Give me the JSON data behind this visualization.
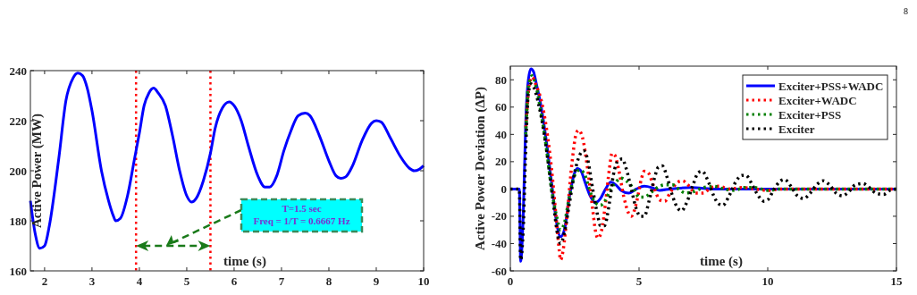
{
  "chart_data": [
    {
      "type": "line",
      "xlabel": "time (s)",
      "ylabel": "Active Power (MW)",
      "xlim": [
        1.7,
        10
      ],
      "ylim": [
        160,
        240
      ],
      "xticks": [
        2,
        3,
        4,
        5,
        6,
        7,
        8,
        9,
        10
      ],
      "yticks": [
        160,
        180,
        200,
        220,
        240
      ],
      "grid": false,
      "legend": false,
      "line_style": "solid",
      "marker": "none",
      "x": [
        1.7,
        1.8,
        1.9,
        2.0,
        2.1,
        2.3,
        2.45,
        2.6,
        2.7,
        2.8,
        2.9,
        3.0,
        3.2,
        3.35,
        3.45,
        3.5,
        3.6,
        3.75,
        3.9,
        4.0,
        4.1,
        4.2,
        4.3,
        4.4,
        4.55,
        4.7,
        4.85,
        5.0,
        5.1,
        5.2,
        5.35,
        5.5,
        5.6,
        5.75,
        5.9,
        6.0,
        6.15,
        6.3,
        6.5,
        6.65,
        6.75,
        6.9,
        7.05,
        7.2,
        7.35,
        7.5,
        7.6,
        7.8,
        8.0,
        8.15,
        8.25,
        8.35,
        8.5,
        8.7,
        8.9,
        9.0,
        9.1,
        9.3,
        9.5,
        9.7,
        9.8,
        9.9,
        10.0
      ],
      "series": [
        {
          "color": "#0000ff",
          "values": [
            188,
            175,
            169,
            170,
            178,
            205,
            228,
            237,
            239,
            238,
            233,
            224,
            200,
            188,
            182,
            180,
            181,
            190,
            205,
            215,
            226,
            231,
            233,
            231,
            226,
            214,
            200,
            190,
            187.5,
            189,
            196,
            207,
            217,
            225,
            227.5,
            226,
            220,
            210,
            198,
            193.5,
            193.5,
            198,
            208,
            216,
            222,
            223,
            222,
            214,
            204,
            198,
            197,
            197.5,
            202,
            212,
            219,
            220,
            219.5,
            213,
            206,
            201,
            200,
            200.5,
            202
          ]
        }
      ],
      "ref_lines": [
        {
          "axis": "x",
          "value": 3.93,
          "color": "#ff0000",
          "line_style": "dotted"
        },
        {
          "axis": "x",
          "value": 5.5,
          "color": "#ff0000",
          "line_style": "dotted"
        }
      ],
      "annotations": [
        "T=1.5 sec",
        "Freq = 1/T = 0.6667 Hz"
      ]
    },
    {
      "type": "line",
      "xlabel": "time (s)",
      "ylabel": "Active Power Deviation (ΔP)",
      "xlim": [
        0,
        15
      ],
      "ylim": [
        -60,
        90
      ],
      "xticks": [
        0,
        5,
        10,
        15
      ],
      "yticks": [
        -60,
        -40,
        -20,
        0,
        20,
        40,
        60,
        80
      ],
      "grid": false,
      "legend": "top right",
      "marker": "none",
      "annotations": [
        "8"
      ],
      "series": [
        {
          "name": "Exciter+PSS+WADC",
          "color": "#0000ff",
          "line_style": "solid",
          "x": [
            0,
            0.35,
            0.4,
            0.5,
            0.6,
            0.7,
            0.8,
            0.9,
            1.0,
            1.2,
            1.4,
            1.6,
            1.8,
            1.95,
            2.1,
            2.3,
            2.5,
            2.6,
            2.75,
            2.9,
            3.1,
            3.3,
            3.5,
            3.7,
            3.9,
            4.1,
            4.3,
            4.6,
            4.9,
            5.2,
            5.5,
            5.8,
            6.2,
            7,
            8,
            10,
            15
          ],
          "values": [
            0,
            0,
            -53,
            -20,
            50,
            80,
            88,
            86,
            78,
            60,
            35,
            5,
            -25,
            -35,
            -30,
            -5,
            12,
            15,
            13,
            5,
            -5,
            -10,
            -7,
            0,
            5,
            3,
            -1,
            -3,
            0,
            2,
            1,
            -1,
            0,
            1,
            0,
            0,
            0
          ]
        },
        {
          "name": "Exciter+WADC",
          "color": "#ff0000",
          "line_style": "dotted",
          "x": [
            0.6,
            0.75,
            0.85,
            1.0,
            1.2,
            1.4,
            1.6,
            1.8,
            1.9,
            1.95,
            2.05,
            2.2,
            2.4,
            2.55,
            2.65,
            2.8,
            3.0,
            3.2,
            3.3,
            3.4,
            3.55,
            3.7,
            3.85,
            3.95,
            4.05,
            4.2,
            4.4,
            4.6,
            4.7,
            4.9,
            5.1,
            5.2,
            5.35,
            5.6,
            5.8,
            6.0,
            6.2,
            6.5,
            6.7,
            6.9,
            7.2,
            7.5,
            7.8,
            8.1,
            8.5,
            9,
            9.5,
            10,
            10.5,
            11,
            15
          ],
          "values": [
            45,
            78,
            82,
            76,
            65,
            45,
            15,
            -25,
            -45,
            -52,
            -45,
            -20,
            20,
            40,
            43,
            38,
            15,
            -15,
            -30,
            -36,
            -30,
            -10,
            15,
            26,
            25,
            15,
            -5,
            -18,
            -20,
            -10,
            8,
            13,
            12,
            0,
            -8,
            -9,
            -3,
            5,
            6,
            3,
            -3,
            -3,
            1,
            2,
            0,
            1,
            0,
            -1,
            0,
            0,
            0
          ]
        },
        {
          "name": "Exciter+PSS",
          "color": "#008000",
          "line_style": "dotted",
          "x": [
            0.6,
            0.7,
            0.85,
            1.0,
            1.2,
            1.4,
            1.6,
            1.8,
            1.95,
            2.1,
            2.3,
            2.5,
            2.7,
            2.9,
            3.1,
            3.3,
            3.5,
            3.7,
            3.9,
            4.1,
            4.3,
            4.5,
            4.8,
            5.0,
            5.2,
            5.5,
            5.8,
            6.0,
            6.3,
            6.6,
            6.8,
            7.1,
            7.5,
            7.9,
            8.3,
            8.7,
            9.1,
            9.5,
            10,
            10.5,
            11,
            15
          ],
          "values": [
            40,
            75,
            83,
            75,
            55,
            30,
            0,
            -20,
            -30,
            -25,
            -5,
            10,
            14,
            10,
            -2,
            -10,
            -12,
            -8,
            0,
            5,
            8,
            6,
            0,
            -6,
            -6,
            -2,
            2,
            3,
            3,
            -1,
            -3,
            -2,
            1,
            2,
            0,
            -1,
            1,
            1,
            -1,
            0,
            0,
            0
          ]
        },
        {
          "name": "Exciter",
          "color": "#000000",
          "line_style": "dotted",
          "x": [
            0,
            0.35,
            0.4,
            0.5,
            0.6,
            0.7,
            0.8,
            0.9,
            1.1,
            1.3,
            1.5,
            1.7,
            1.85,
            1.95,
            2.1,
            2.3,
            2.5,
            2.7,
            2.85,
            3.0,
            3.2,
            3.4,
            3.5,
            3.65,
            3.85,
            4.0,
            4.2,
            4.35,
            4.5,
            4.7,
            4.9,
            5.05,
            5.2,
            5.4,
            5.6,
            5.75,
            5.9,
            6.1,
            6.3,
            6.5,
            6.65,
            6.85,
            7.1,
            7.3,
            7.45,
            7.7,
            7.9,
            8.1,
            8.25,
            8.5,
            8.75,
            9.0,
            9.15,
            9.4,
            9.6,
            9.85,
            10.0,
            10.25,
            10.5,
            10.65,
            10.9,
            11.15,
            11.4,
            11.65,
            11.9,
            12.15,
            12.4,
            12.65,
            12.9,
            13.15,
            13.4,
            13.7,
            13.95,
            14.2,
            14.5,
            14.75,
            15
          ],
          "values": [
            0,
            0,
            -52,
            -30,
            30,
            70,
            77,
            75,
            62,
            42,
            15,
            -15,
            -35,
            -40,
            -32,
            -10,
            12,
            25,
            28,
            22,
            0,
            -20,
            -27,
            -27,
            -10,
            10,
            21,
            22,
            15,
            0,
            -15,
            -20,
            -20,
            -8,
            8,
            16,
            17,
            8,
            -5,
            -14,
            -16,
            -10,
            3,
            12,
            13,
            5,
            -5,
            -11,
            -12,
            -5,
            5,
            10,
            10,
            3,
            -4,
            -9,
            -8,
            0,
            6,
            7,
            2,
            -5,
            -7,
            -3,
            3,
            6,
            3,
            -3,
            -5,
            -2,
            3,
            4,
            1,
            -3,
            -4,
            -1,
            0
          ]
        }
      ]
    }
  ]
}
